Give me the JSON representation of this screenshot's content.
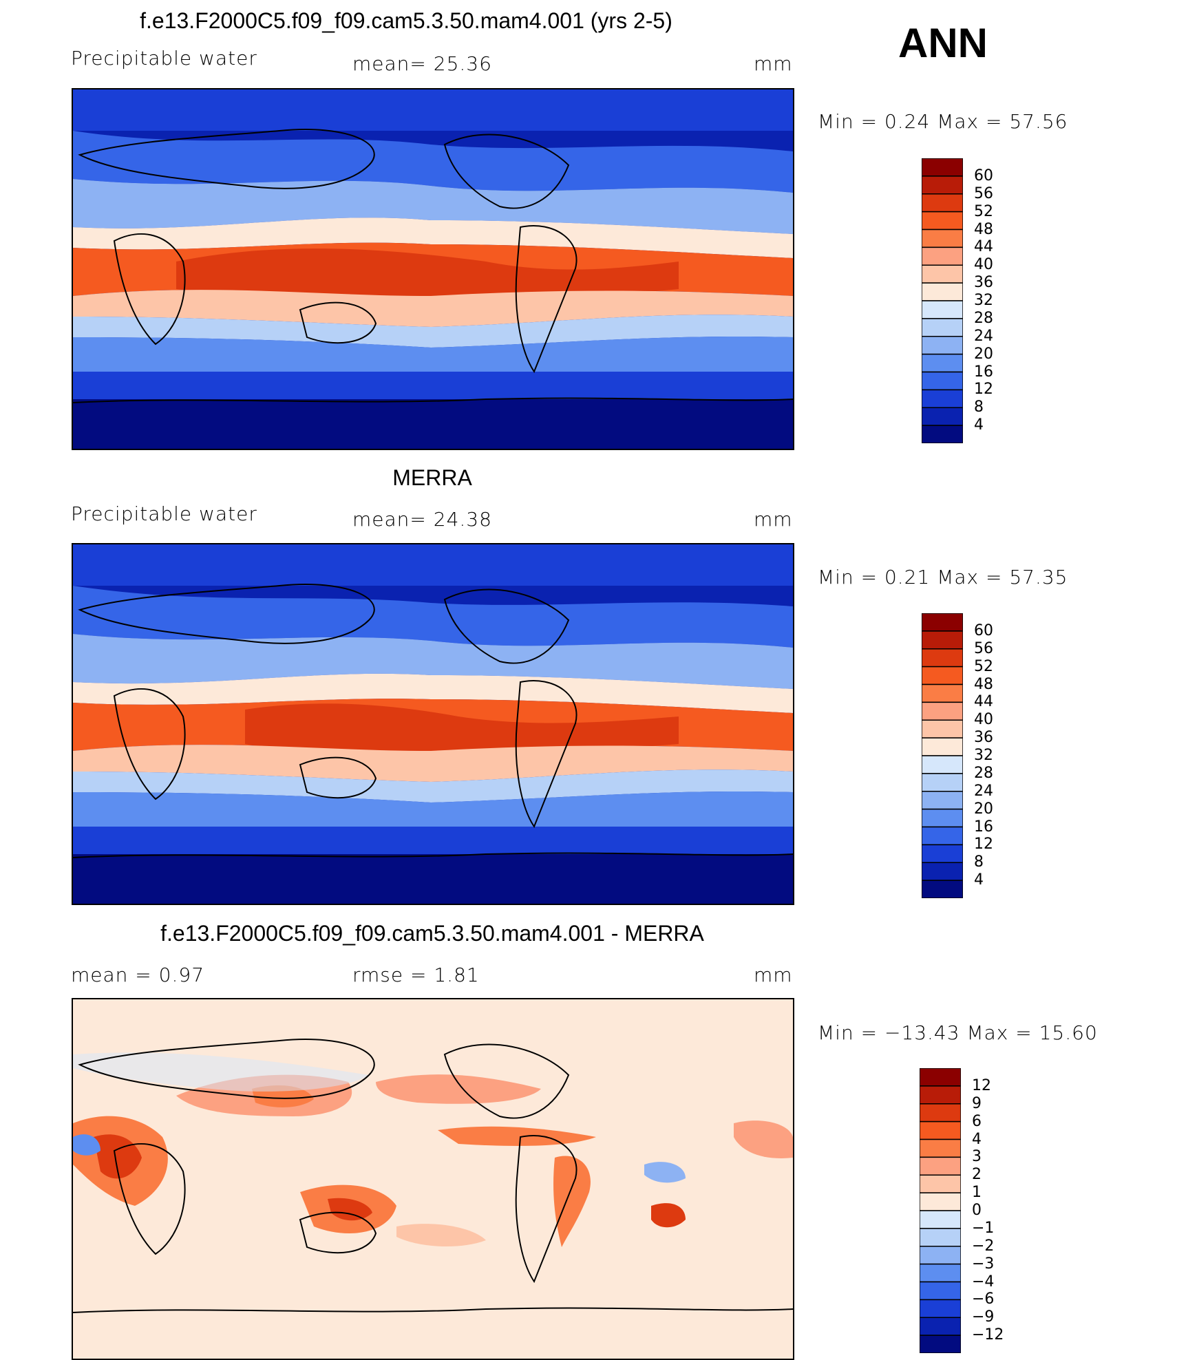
{
  "season": "ANN",
  "panels": [
    {
      "title": "f.e13.F2000C5.f09_f09.cam5.3.50.mam4.001 (yrs 2-5)",
      "left_label": "Precipitable  water",
      "center_label": "mean=   25.36",
      "units": "mm",
      "minmax": "Min  =     0.24  Max  =    57.56",
      "colorbar_labels": [
        "60",
        "56",
        "52",
        "48",
        "44",
        "40",
        "36",
        "32",
        "28",
        "24",
        "20",
        "16",
        "12",
        "8",
        "4"
      ],
      "colors": [
        "#8b0000",
        "#b81c08",
        "#dd3a10",
        "#f55a20",
        "#fa7d45",
        "#fca181",
        "#fdc5a8",
        "#fde9d9",
        "#d6e7fb",
        "#b6d1f7",
        "#8db2f3",
        "#5d8ef0",
        "#3565e8",
        "#1a3fd6",
        "#0a22b0",
        "#020b80"
      ]
    },
    {
      "title": "MERRA",
      "left_label": "Precipitable  water",
      "center_label": "mean=   24.38",
      "units": "mm",
      "minmax": "Min  =     0.21  Max  =    57.35",
      "colorbar_labels": [
        "60",
        "56",
        "52",
        "48",
        "44",
        "40",
        "36",
        "32",
        "28",
        "24",
        "20",
        "16",
        "12",
        "8",
        "4"
      ],
      "colors": [
        "#8b0000",
        "#b81c08",
        "#dd3a10",
        "#f55a20",
        "#fa7d45",
        "#fca181",
        "#fdc5a8",
        "#fde9d9",
        "#d6e7fb",
        "#b6d1f7",
        "#8db2f3",
        "#5d8ef0",
        "#3565e8",
        "#1a3fd6",
        "#0a22b0",
        "#020b80"
      ]
    },
    {
      "title": "f.e13.F2000C5.f09_f09.cam5.3.50.mam4.001 - MERRA",
      "left_label": "mean  =     0.97",
      "center_label": "rmse  =     1.81",
      "units": "mm",
      "minmax": "Min  = −13.43  Max  =    15.60",
      "colorbar_labels": [
        "12",
        "9",
        "6",
        "4",
        "3",
        "2",
        "1",
        "0",
        "−1",
        "−2",
        "−3",
        "−4",
        "−6",
        "−9",
        "−12"
      ],
      "colors": [
        "#8b0000",
        "#b81c08",
        "#dd3a10",
        "#f55a20",
        "#fa7d45",
        "#fca181",
        "#fdc5a8",
        "#fde9d9",
        "#d6e7fb",
        "#b6d1f7",
        "#8db2f3",
        "#5d8ef0",
        "#3565e8",
        "#1a3fd6",
        "#0a22b0",
        "#020b80"
      ]
    }
  ]
}
